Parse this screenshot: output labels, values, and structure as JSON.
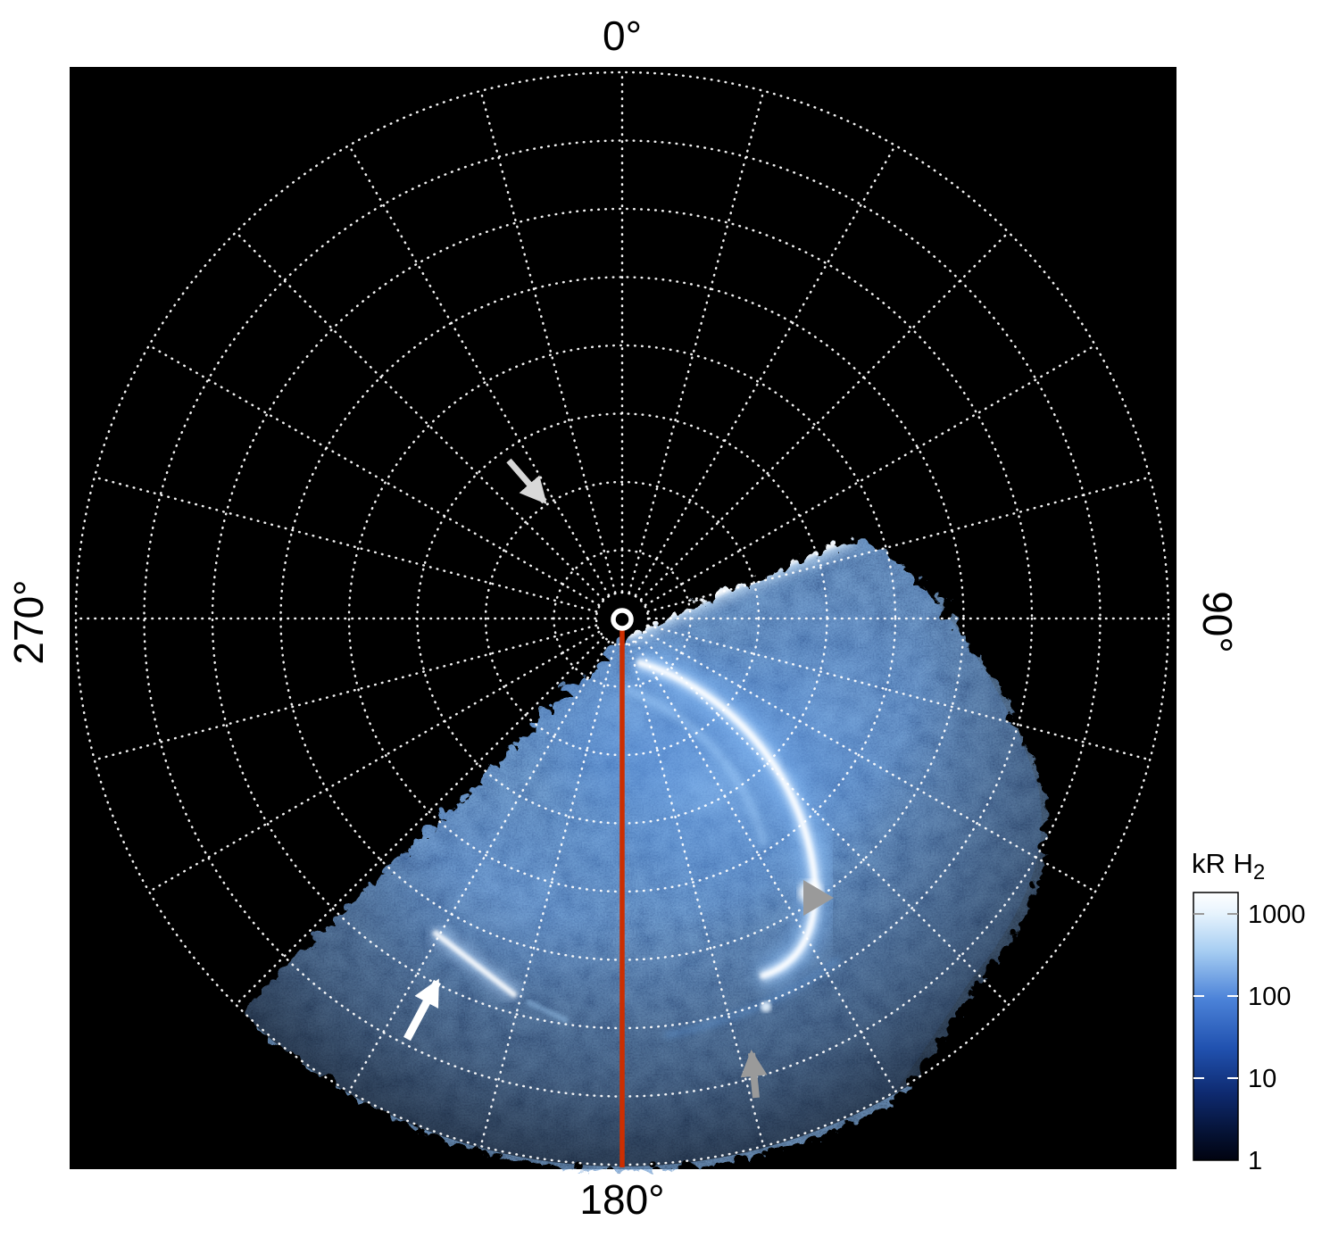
{
  "figure": {
    "angle_labels": {
      "top": "0°",
      "right": "90°",
      "bottom": "180°",
      "left": "270°"
    },
    "colorbar": {
      "title_main": "kR H",
      "title_sub": "2",
      "ticks": [
        "1000",
        "100",
        "10",
        "1"
      ]
    }
  },
  "chart_data": {
    "type": "heatmap",
    "projection": "polar",
    "title": "",
    "angular_tick_labels": [
      "0°",
      "90°",
      "180°",
      "270°"
    ],
    "grid": {
      "style": "dotted",
      "color": "#ffffff",
      "rings": 8,
      "spoke_interval_deg": 15
    },
    "meridian_highlight": {
      "angle_deg": 180,
      "color": "#cc2e00"
    },
    "data_sector_deg": {
      "start": 66,
      "end": 248
    },
    "emission": {
      "units": "kR H2",
      "scale": "log",
      "range": [
        1,
        1000
      ]
    },
    "colorbar": {
      "label": "kR H2",
      "scale": "log",
      "orientation": "vertical",
      "tick_values": [
        1000,
        100,
        10,
        1
      ],
      "colors_top_to_bottom": [
        "#ffffff",
        "#a6cdf2",
        "#4b82d8",
        "#2152b0",
        "#0e2a70",
        "#051234",
        "#010310"
      ]
    },
    "annotations": [
      {
        "id": "light-gray-arrow",
        "shape": "arrow",
        "color": "#d8d8d8",
        "direction": "down-right"
      },
      {
        "id": "white-arrow",
        "shape": "arrow",
        "color": "#ffffff",
        "direction": "up-right"
      },
      {
        "id": "gray-arrowhead",
        "shape": "triangle",
        "color": "#9a9a9a",
        "direction": "right"
      },
      {
        "id": "gray-arrow",
        "shape": "arrow",
        "color": "#9a9a9a",
        "direction": "up"
      }
    ]
  }
}
